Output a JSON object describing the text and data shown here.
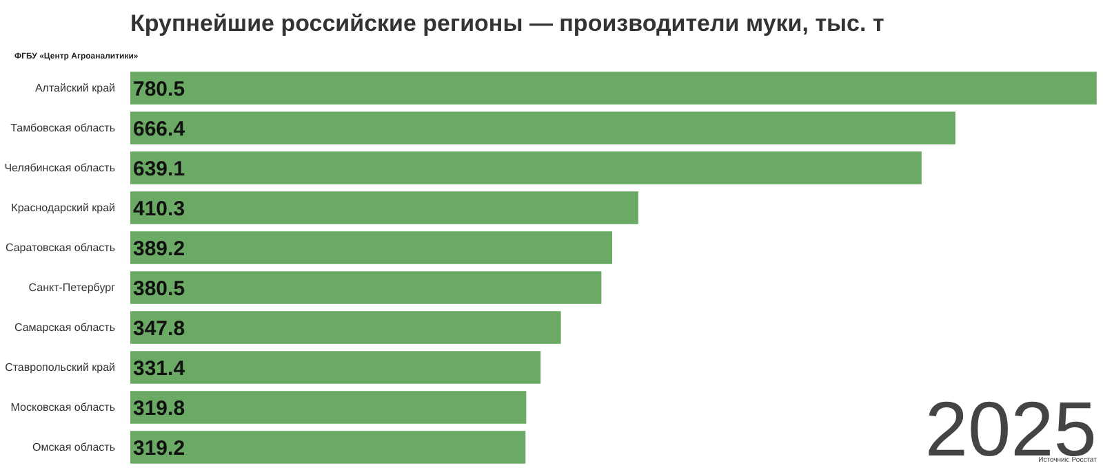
{
  "chart_data": {
    "type": "bar",
    "orientation": "horizontal",
    "title": "Крупнейшие российские регионы — производители муки, тыс. т",
    "categories": [
      "Алтайский край",
      "Тамбовская область",
      "Челябинская область",
      "Краснодарский край",
      "Саратовская область",
      "Санкт-Петербург",
      "Самарская область",
      "Ставропольский край",
      "Московская область",
      "Омская область"
    ],
    "values": [
      780.5,
      666.4,
      639.1,
      410.3,
      389.2,
      380.5,
      347.8,
      331.4,
      319.8,
      319.2
    ],
    "color": "#6aaa64",
    "data_labels": true,
    "grid": false,
    "annotations": [
      "ФГБУ «Центр Агроаналитики»",
      "2025",
      "Источник: Росстат"
    ]
  }
}
